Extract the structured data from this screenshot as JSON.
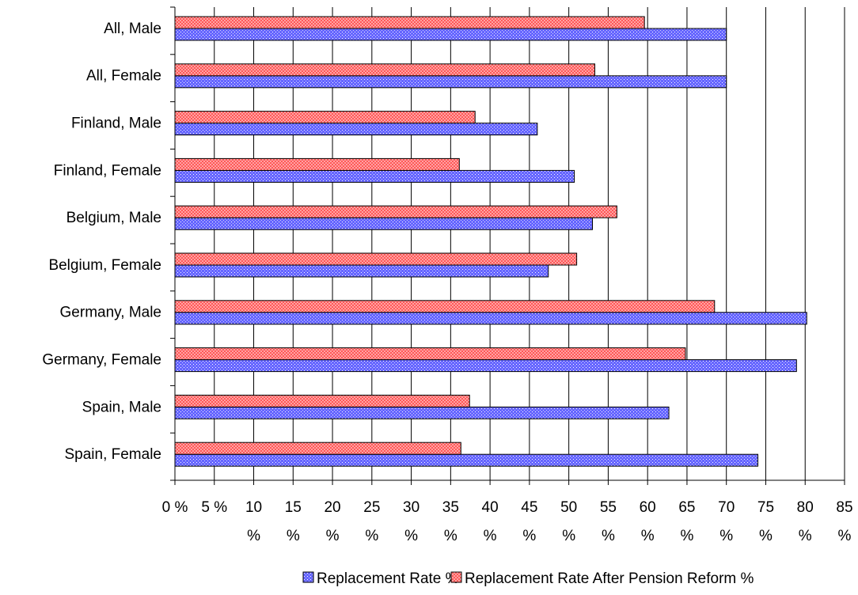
{
  "chart_data": {
    "type": "bar",
    "orientation": "horizontal",
    "categories": [
      "All, Male",
      "All, Female",
      "Finland, Male",
      "Finland, Female",
      "Belgium, Male",
      "Belgium, Female",
      "Germany, Male",
      "Germany, Female",
      "Spain, Male",
      "Spain, Female"
    ],
    "series": [
      {
        "name": "Replacement Rate %",
        "color": "#6666ff",
        "values": [
          70,
          70,
          46,
          50.7,
          53,
          47.4,
          80.2,
          78.9,
          62.7,
          74
        ]
      },
      {
        "name": "Replacement Rate After Pension Reform %",
        "color": "#ff8080",
        "values": [
          59.6,
          53.3,
          38.1,
          36.1,
          56.1,
          51,
          68.5,
          64.8,
          37.4,
          36.3
        ]
      }
    ],
    "xticks": [
      {
        "value": 0,
        "line1": "0 %",
        "line2": ""
      },
      {
        "value": 5,
        "line1": "5 %",
        "line2": ""
      },
      {
        "value": 10,
        "line1": "10",
        "line2": "%"
      },
      {
        "value": 15,
        "line1": "15",
        "line2": "%"
      },
      {
        "value": 20,
        "line1": "20",
        "line2": "%"
      },
      {
        "value": 25,
        "line1": "25",
        "line2": "%"
      },
      {
        "value": 30,
        "line1": "30",
        "line2": "%"
      },
      {
        "value": 35,
        "line1": "35",
        "line2": "%"
      },
      {
        "value": 40,
        "line1": "40",
        "line2": "%"
      },
      {
        "value": 45,
        "line1": "45",
        "line2": "%"
      },
      {
        "value": 50,
        "line1": "50",
        "line2": "%"
      },
      {
        "value": 55,
        "line1": "55",
        "line2": "%"
      },
      {
        "value": 60,
        "line1": "60",
        "line2": "%"
      },
      {
        "value": 65,
        "line1": "65",
        "line2": "%"
      },
      {
        "value": 70,
        "line1": "70",
        "line2": "%"
      },
      {
        "value": 75,
        "line1": "75",
        "line2": "%"
      },
      {
        "value": 80,
        "line1": "80",
        "line2": "%"
      },
      {
        "value": 85,
        "line1": "85",
        "line2": "%"
      }
    ],
    "xlim": [
      0,
      85
    ],
    "grid": "vertical",
    "legend_position": "bottom"
  }
}
